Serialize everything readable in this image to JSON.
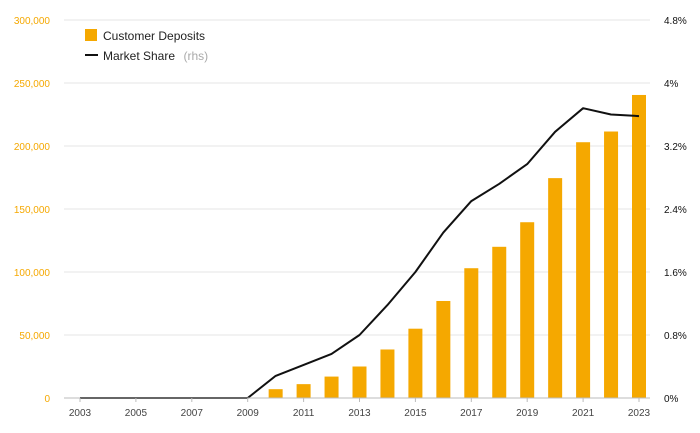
{
  "chart_data": {
    "type": "bar",
    "x": [
      2003,
      2004,
      2005,
      2006,
      2007,
      2008,
      2009,
      2010,
      2011,
      2012,
      2013,
      2014,
      2015,
      2016,
      2017,
      2018,
      2019,
      2020,
      2021,
      2022,
      2023
    ],
    "x_tick_labels": [
      "2003",
      "2005",
      "2007",
      "2009",
      "2011",
      "2013",
      "2015",
      "2017",
      "2019",
      "2021",
      "2023"
    ],
    "series": [
      {
        "name": "Customer Deposits",
        "type": "bar",
        "axis": "left",
        "color": "#f5a800",
        "values": [
          0,
          0,
          0,
          0,
          0,
          0,
          0,
          7000,
          11000,
          17000,
          25000,
          38500,
          55000,
          77000,
          103000,
          120000,
          139500,
          174500,
          203000,
          211500,
          240500
        ]
      },
      {
        "name": "Market Share",
        "type": "line",
        "axis": "right",
        "color": "#111111",
        "values": [
          0,
          0,
          0,
          0,
          0,
          0,
          0,
          0.28,
          0.42,
          0.56,
          0.8,
          1.18,
          1.6,
          2.1,
          2.5,
          2.72,
          2.97,
          3.38,
          3.68,
          3.6,
          3.58
        ]
      }
    ],
    "y_left": {
      "ylim": [
        0,
        300000
      ],
      "ticks": [
        0,
        50000,
        100000,
        150000,
        200000,
        250000,
        300000
      ],
      "tick_labels": [
        "0",
        "50,000",
        "100,000",
        "150,000",
        "200,000",
        "250,000",
        "300,000"
      ],
      "color": "#f5a800"
    },
    "y_right": {
      "ylim": [
        0,
        4.8
      ],
      "ticks": [
        0,
        0.8,
        1.6,
        2.4,
        3.2,
        4.0,
        4.8
      ],
      "tick_labels": [
        "0%",
        "0.8%",
        "1.6%",
        "2.4%",
        "3.2%",
        "4%",
        "4.8%"
      ],
      "color": "#111111"
    },
    "legend": {
      "placement": "top-left",
      "items": [
        {
          "label": "Customer Deposits",
          "suffix": ""
        },
        {
          "label": "Market Share",
          "suffix": "(rhs)"
        }
      ]
    },
    "grid": true,
    "title": ""
  }
}
